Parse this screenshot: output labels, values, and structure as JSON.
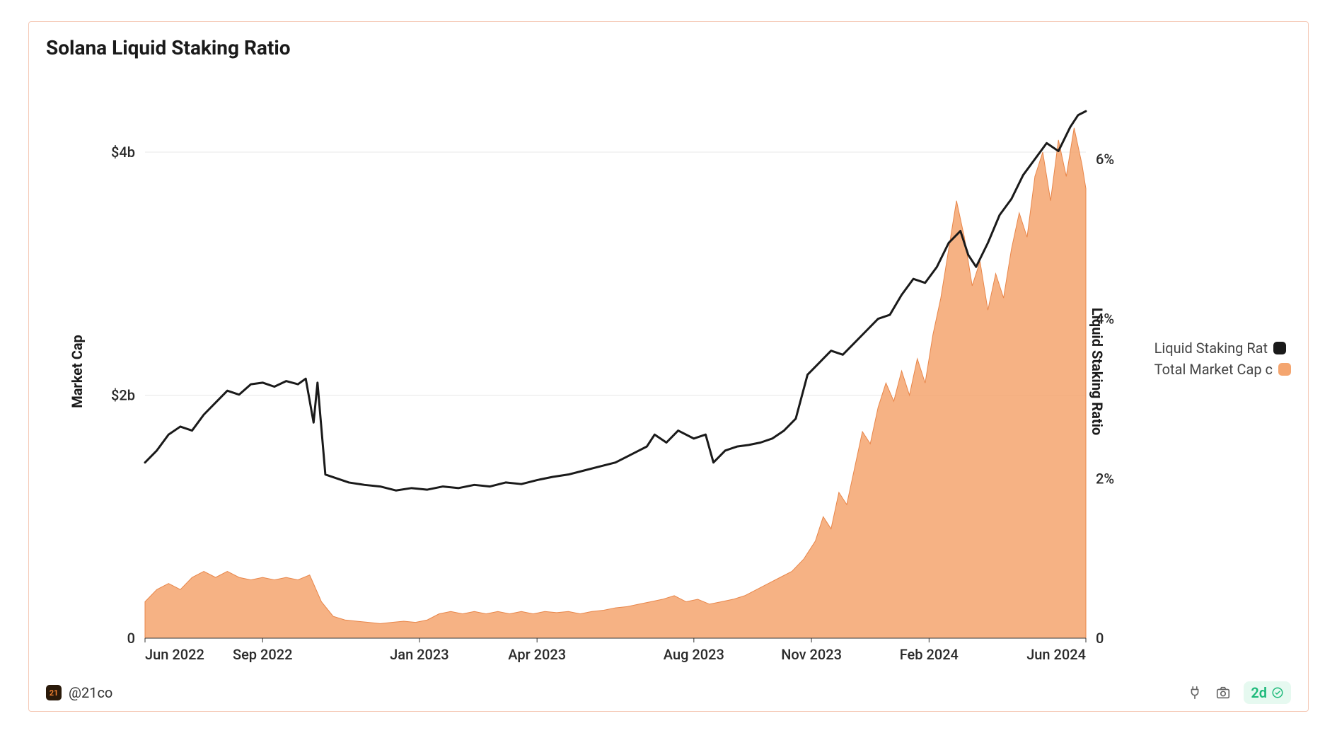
{
  "chart": {
    "title": "Solana Liquid Staking Ratio",
    "type": "combo-line-area",
    "background_color": "#ffffff",
    "border_color": "#f5c9b6",
    "grid_color": "#e8e8e8",
    "y_left": {
      "label": "Market Cap",
      "ticks": [
        {
          "v": 0,
          "label": "0"
        },
        {
          "v": 2,
          "label": "$2b"
        },
        {
          "v": 4,
          "label": "$4b"
        }
      ],
      "min": 0,
      "max": 4.6
    },
    "y_right": {
      "label": "Liquid Staking Ratio",
      "ticks": [
        {
          "v": 0,
          "label": "0"
        },
        {
          "v": 2,
          "label": "2%"
        },
        {
          "v": 4,
          "label": "4%"
        },
        {
          "v": 6,
          "label": "6%"
        }
      ],
      "min": 0,
      "max": 7.0
    },
    "x": {
      "min": 0,
      "max": 24,
      "ticks": [
        {
          "v": 0,
          "label": "Jun 2022"
        },
        {
          "v": 3,
          "label": "Sep 2022"
        },
        {
          "v": 7,
          "label": "Jan 2023"
        },
        {
          "v": 10,
          "label": "Apr 2023"
        },
        {
          "v": 14,
          "label": "Aug 2023"
        },
        {
          "v": 17,
          "label": "Nov 2023"
        },
        {
          "v": 20,
          "label": "Feb 2024"
        },
        {
          "v": 24,
          "label": "Jun 2024"
        }
      ]
    },
    "legend": [
      {
        "label": "Liquid Staking Rat",
        "color": "#1a1a1a",
        "swatch_radius": 5
      },
      {
        "label": "Total Market Cap c",
        "color": "#f4a56f",
        "swatch_radius": 5
      }
    ],
    "series_line": {
      "name": "Liquid Staking Ratio",
      "axis": "right",
      "color": "#1a1a1a",
      "stroke_width": 3,
      "data": [
        [
          0.0,
          2.2
        ],
        [
          0.3,
          2.35
        ],
        [
          0.6,
          2.55
        ],
        [
          0.9,
          2.65
        ],
        [
          1.2,
          2.6
        ],
        [
          1.5,
          2.8
        ],
        [
          1.8,
          2.95
        ],
        [
          2.1,
          3.1
        ],
        [
          2.4,
          3.05
        ],
        [
          2.7,
          3.18
        ],
        [
          3.0,
          3.2
        ],
        [
          3.3,
          3.15
        ],
        [
          3.6,
          3.22
        ],
        [
          3.9,
          3.18
        ],
        [
          4.1,
          3.25
        ],
        [
          4.3,
          2.7
        ],
        [
          4.4,
          3.2
        ],
        [
          4.6,
          2.05
        ],
        [
          4.9,
          2.0
        ],
        [
          5.2,
          1.95
        ],
        [
          5.6,
          1.92
        ],
        [
          6.0,
          1.9
        ],
        [
          6.4,
          1.85
        ],
        [
          6.8,
          1.88
        ],
        [
          7.2,
          1.86
        ],
        [
          7.6,
          1.9
        ],
        [
          8.0,
          1.88
        ],
        [
          8.4,
          1.92
        ],
        [
          8.8,
          1.9
        ],
        [
          9.2,
          1.95
        ],
        [
          9.6,
          1.93
        ],
        [
          10.0,
          1.98
        ],
        [
          10.4,
          2.02
        ],
        [
          10.8,
          2.05
        ],
        [
          11.2,
          2.1
        ],
        [
          11.6,
          2.15
        ],
        [
          12.0,
          2.2
        ],
        [
          12.4,
          2.3
        ],
        [
          12.8,
          2.4
        ],
        [
          13.0,
          2.55
        ],
        [
          13.3,
          2.45
        ],
        [
          13.6,
          2.6
        ],
        [
          14.0,
          2.5
        ],
        [
          14.3,
          2.55
        ],
        [
          14.5,
          2.2
        ],
        [
          14.8,
          2.35
        ],
        [
          15.1,
          2.4
        ],
        [
          15.4,
          2.42
        ],
        [
          15.7,
          2.45
        ],
        [
          16.0,
          2.5
        ],
        [
          16.3,
          2.6
        ],
        [
          16.6,
          2.75
        ],
        [
          16.9,
          3.3
        ],
        [
          17.2,
          3.45
        ],
        [
          17.5,
          3.6
        ],
        [
          17.8,
          3.55
        ],
        [
          18.1,
          3.7
        ],
        [
          18.4,
          3.85
        ],
        [
          18.7,
          4.0
        ],
        [
          19.0,
          4.05
        ],
        [
          19.3,
          4.3
        ],
        [
          19.6,
          4.5
        ],
        [
          19.9,
          4.45
        ],
        [
          20.2,
          4.65
        ],
        [
          20.5,
          4.95
        ],
        [
          20.8,
          5.1
        ],
        [
          21.0,
          4.8
        ],
        [
          21.2,
          4.65
        ],
        [
          21.5,
          4.95
        ],
        [
          21.8,
          5.3
        ],
        [
          22.1,
          5.5
        ],
        [
          22.4,
          5.8
        ],
        [
          22.7,
          6.0
        ],
        [
          23.0,
          6.2
        ],
        [
          23.3,
          6.1
        ],
        [
          23.6,
          6.4
        ],
        [
          23.8,
          6.55
        ],
        [
          24.0,
          6.6
        ]
      ]
    },
    "series_area": {
      "name": "Total Market Cap",
      "axis": "left",
      "color_fill": "#f4a56f",
      "color_stroke": "#e8864a",
      "fill_opacity": 0.85,
      "data": [
        [
          0.0,
          0.3
        ],
        [
          0.3,
          0.4
        ],
        [
          0.6,
          0.45
        ],
        [
          0.9,
          0.4
        ],
        [
          1.2,
          0.5
        ],
        [
          1.5,
          0.55
        ],
        [
          1.8,
          0.5
        ],
        [
          2.1,
          0.55
        ],
        [
          2.4,
          0.5
        ],
        [
          2.7,
          0.48
        ],
        [
          3.0,
          0.5
        ],
        [
          3.3,
          0.48
        ],
        [
          3.6,
          0.5
        ],
        [
          3.9,
          0.48
        ],
        [
          4.2,
          0.52
        ],
        [
          4.5,
          0.3
        ],
        [
          4.8,
          0.18
        ],
        [
          5.1,
          0.15
        ],
        [
          5.4,
          0.14
        ],
        [
          5.7,
          0.13
        ],
        [
          6.0,
          0.12
        ],
        [
          6.3,
          0.13
        ],
        [
          6.6,
          0.14
        ],
        [
          6.9,
          0.13
        ],
        [
          7.2,
          0.15
        ],
        [
          7.5,
          0.2
        ],
        [
          7.8,
          0.22
        ],
        [
          8.1,
          0.2
        ],
        [
          8.4,
          0.22
        ],
        [
          8.7,
          0.2
        ],
        [
          9.0,
          0.22
        ],
        [
          9.3,
          0.2
        ],
        [
          9.6,
          0.22
        ],
        [
          9.9,
          0.2
        ],
        [
          10.2,
          0.22
        ],
        [
          10.5,
          0.21
        ],
        [
          10.8,
          0.22
        ],
        [
          11.1,
          0.2
        ],
        [
          11.4,
          0.22
        ],
        [
          11.7,
          0.23
        ],
        [
          12.0,
          0.25
        ],
        [
          12.3,
          0.26
        ],
        [
          12.6,
          0.28
        ],
        [
          12.9,
          0.3
        ],
        [
          13.2,
          0.32
        ],
        [
          13.5,
          0.35
        ],
        [
          13.8,
          0.3
        ],
        [
          14.1,
          0.32
        ],
        [
          14.4,
          0.28
        ],
        [
          14.7,
          0.3
        ],
        [
          15.0,
          0.32
        ],
        [
          15.3,
          0.35
        ],
        [
          15.6,
          0.4
        ],
        [
          15.9,
          0.45
        ],
        [
          16.2,
          0.5
        ],
        [
          16.5,
          0.55
        ],
        [
          16.8,
          0.65
        ],
        [
          17.1,
          0.8
        ],
        [
          17.3,
          1.0
        ],
        [
          17.5,
          0.9
        ],
        [
          17.7,
          1.2
        ],
        [
          17.9,
          1.1
        ],
        [
          18.1,
          1.4
        ],
        [
          18.3,
          1.7
        ],
        [
          18.5,
          1.6
        ],
        [
          18.7,
          1.9
        ],
        [
          18.9,
          2.1
        ],
        [
          19.1,
          1.95
        ],
        [
          19.3,
          2.2
        ],
        [
          19.5,
          2.0
        ],
        [
          19.7,
          2.3
        ],
        [
          19.9,
          2.1
        ],
        [
          20.1,
          2.5
        ],
        [
          20.3,
          2.8
        ],
        [
          20.5,
          3.2
        ],
        [
          20.7,
          3.6
        ],
        [
          20.9,
          3.3
        ],
        [
          21.1,
          2.9
        ],
        [
          21.3,
          3.1
        ],
        [
          21.5,
          2.7
        ],
        [
          21.7,
          3.0
        ],
        [
          21.9,
          2.8
        ],
        [
          22.1,
          3.2
        ],
        [
          22.3,
          3.5
        ],
        [
          22.5,
          3.3
        ],
        [
          22.7,
          3.8
        ],
        [
          22.9,
          4.0
        ],
        [
          23.1,
          3.6
        ],
        [
          23.3,
          4.1
        ],
        [
          23.5,
          3.8
        ],
        [
          23.7,
          4.2
        ],
        [
          23.9,
          3.9
        ],
        [
          24.0,
          3.7
        ]
      ]
    }
  },
  "footer": {
    "author_handle": "@21co",
    "author_badge_text": "21",
    "freshness_label": "2d"
  }
}
